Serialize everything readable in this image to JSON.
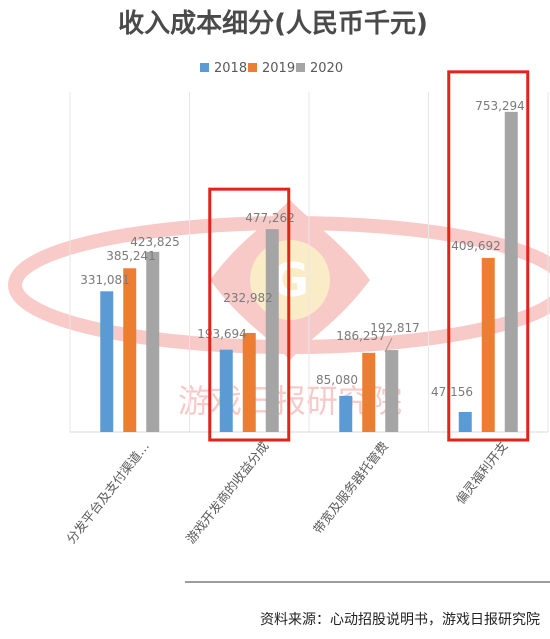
{
  "chart_data": {
    "type": "bar",
    "title": "收入成本细分(人民币千元)",
    "categories": [
      "分发平台及支付渠道…",
      "游戏开发商的收益分成",
      "带宽及服务器托管费",
      "偏灵福利开支"
    ],
    "series": [
      {
        "name": "2018",
        "color": "#5b9bd5",
        "values": [
          331081,
          193694,
          85080,
          47156
        ]
      },
      {
        "name": "2019",
        "color": "#ed7d31",
        "values": [
          385241,
          232982,
          186257,
          409692
        ]
      },
      {
        "name": "2020",
        "color": "#a5a5a5",
        "values": [
          423825,
          477262,
          192817,
          753294
        ]
      }
    ],
    "value_labels": [
      [
        "331,081",
        "193,694",
        "85,080",
        "47,156"
      ],
      [
        "385,241",
        "232,982",
        "186,257",
        "409,692"
      ],
      [
        "423,825",
        "477,262",
        "192,817",
        "753,294"
      ]
    ],
    "ylim": [
      0,
      800000
    ],
    "grid": true,
    "legend": "top",
    "highlighted_categories": [
      1,
      3
    ],
    "highlight_color": "#e2231a"
  },
  "watermark": {
    "text": "游戏日报研究院",
    "logo_letter": "G"
  },
  "source": "资料来源：心动招股说明书，游戏日报研究院"
}
